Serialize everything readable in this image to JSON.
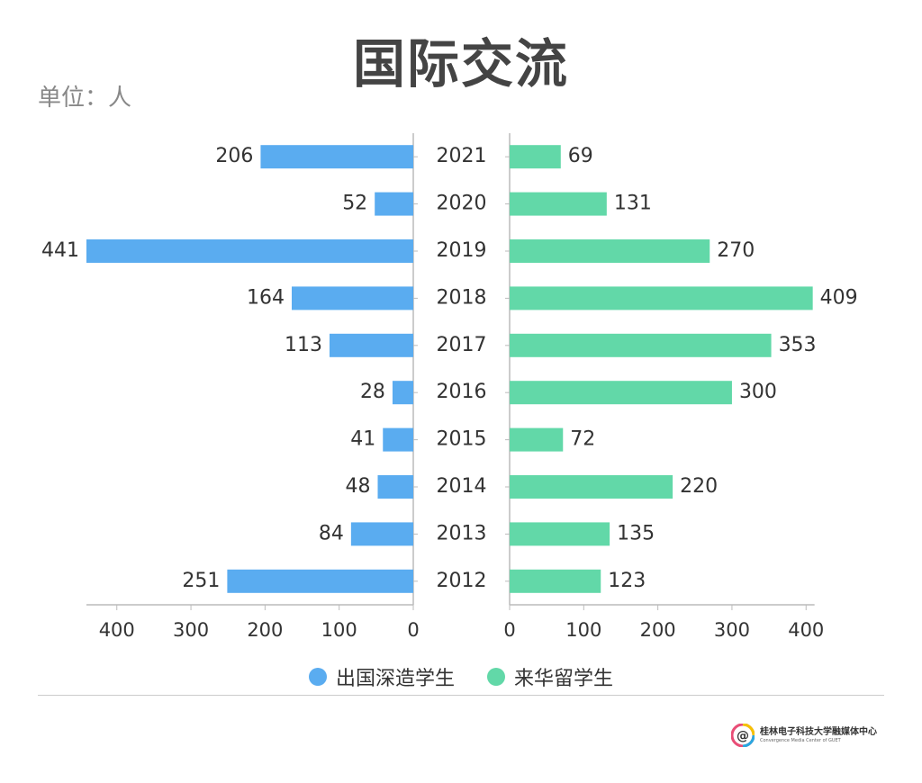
{
  "title": "国际交流",
  "unit": "单位：人",
  "chart_data": [
    {
      "type": "bar",
      "orientation": "horizontal",
      "direction": "leftward",
      "categories": [
        "2021",
        "2020",
        "2019",
        "2018",
        "2017",
        "2016",
        "2015",
        "2014",
        "2013",
        "2012"
      ],
      "series": [
        {
          "name": "出国深造学生",
          "color": "#5aacf0",
          "values": [
            206,
            52,
            441,
            164,
            113,
            28,
            41,
            48,
            84,
            251
          ]
        }
      ],
      "xlim": [
        0,
        441
      ],
      "xticks": [
        "400",
        "300",
        "200",
        "100",
        "0"
      ]
    },
    {
      "type": "bar",
      "orientation": "horizontal",
      "direction": "rightward",
      "categories": [
        "2021",
        "2020",
        "2019",
        "2018",
        "2017",
        "2016",
        "2015",
        "2014",
        "2013",
        "2012"
      ],
      "series": [
        {
          "name": "来华留学生",
          "color": "#62d8a8",
          "values": [
            69,
            131,
            270,
            409,
            353,
            300,
            72,
            220,
            135,
            123
          ]
        }
      ],
      "xlim": [
        0,
        409
      ],
      "xticks": [
        "0",
        "100",
        "200",
        "300",
        "400"
      ]
    }
  ],
  "legend": [
    {
      "label": "出国深造学生",
      "color": "#5aacf0"
    },
    {
      "label": "来华留学生",
      "color": "#62d8a8"
    }
  ],
  "footer": {
    "org_cn": "桂林电子科技大学融媒体中心",
    "org_en": "Convergence Media Center of GUET",
    "logo_glyph": "@"
  }
}
